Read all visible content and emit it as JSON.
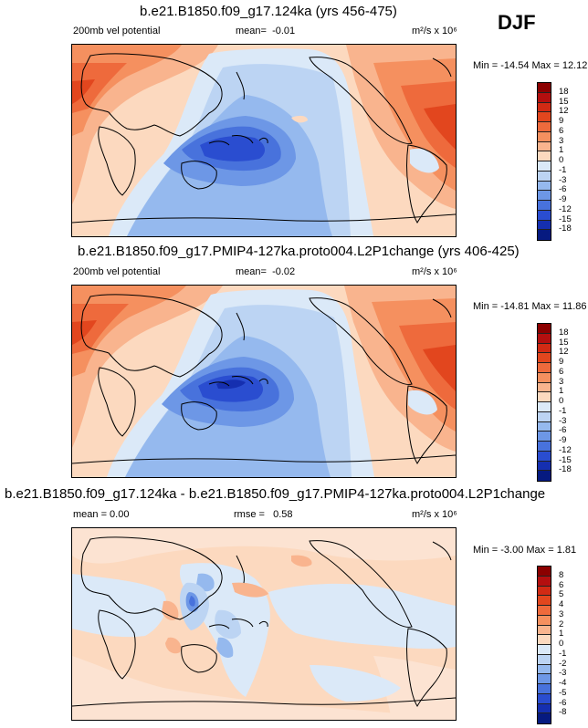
{
  "season": "DJF",
  "panels": [
    {
      "title": "b.e21.B1850.f09_g17.124ka (yrs 456-475)",
      "left_label": "200mb vel potential",
      "mean_label": "mean=",
      "mean_value": "-0.01",
      "units": "m²/s x 10⁶",
      "minmax": "Min = -14.54 Max =  12.12",
      "colorbar_labels": [
        "18",
        "15",
        "12",
        "9",
        "6",
        "3",
        "1",
        "0",
        "-1",
        "-3",
        "-6",
        "-9",
        "-12",
        "-15",
        "-18"
      ]
    },
    {
      "title": "b.e21.B1850.f09_g17.PMIP4-127ka.proto004.L2P1change (yrs 406-425)",
      "left_label": "200mb vel potential",
      "mean_label": "mean=",
      "mean_value": "-0.02",
      "units": "m²/s x 10⁶",
      "minmax": "Min = -14.81 Max =  11.86",
      "colorbar_labels": [
        "18",
        "15",
        "12",
        "9",
        "6",
        "3",
        "1",
        "0",
        "-1",
        "-3",
        "-6",
        "-9",
        "-12",
        "-15",
        "-18"
      ]
    },
    {
      "title": "b.e21.B1850.f09_g17.124ka - b.e21.B1850.f09_g17.PMIP4-127ka.proto004.L2P1change",
      "left_label": "mean =   0.00",
      "rmse_label": "rmse =",
      "rmse_value": "0.58",
      "units": "m²/s x 10⁶",
      "minmax": "Min =  -3.00 Max =   1.81",
      "colorbar_labels": [
        "8",
        "6",
        "5",
        "4",
        "3",
        "2",
        "1",
        "0",
        "-1",
        "-2",
        "-3",
        "-4",
        "-5",
        "-6",
        "-8"
      ]
    }
  ],
  "colors": {
    "scale": [
      "#8b0000",
      "#b40f0f",
      "#d12a14",
      "#e2461e",
      "#ee6a3c",
      "#f5905f",
      "#f9b48e",
      "#fcd9bf",
      "#dbe9f8",
      "#bcd4f3",
      "#95b9ee",
      "#6d97e6",
      "#4872dc",
      "#2a4dd0",
      "#152fb0",
      "#061a80"
    ]
  }
}
